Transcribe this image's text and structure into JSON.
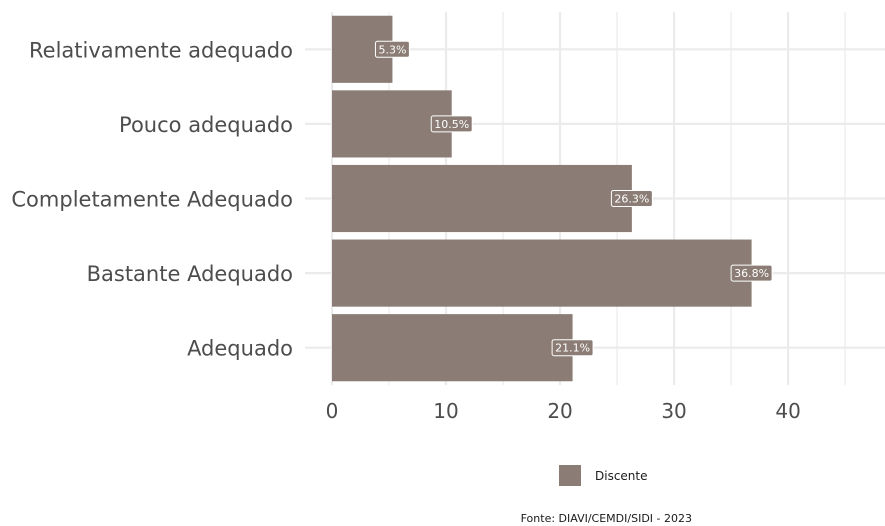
{
  "chart_data": {
    "type": "bar",
    "orientation": "horizontal",
    "categories": [
      "Adequado",
      "Bastante Adequado",
      "Completamente Adequado",
      "Pouco adequado",
      "Relativamente adequado"
    ],
    "series": [
      {
        "name": "Discente",
        "values": [
          21.1,
          36.8,
          26.3,
          10.5,
          5.3
        ],
        "labels": [
          "21.1%",
          "36.8%",
          "26.3%",
          "10.5%",
          "5.3%"
        ]
      }
    ],
    "x_ticks": [
      0,
      10,
      20,
      30,
      40
    ],
    "xlim": [
      0,
      48.5
    ],
    "grid": true,
    "legend_position": "bottom",
    "caption": "Fonte: DIAVI/CEMDI/SIDI - 2023",
    "colors": {
      "bar": "#8b7d75",
      "grid": "#ebebeb",
      "label_fill": "#8b7d75",
      "label_border": "#ffffff"
    }
  }
}
